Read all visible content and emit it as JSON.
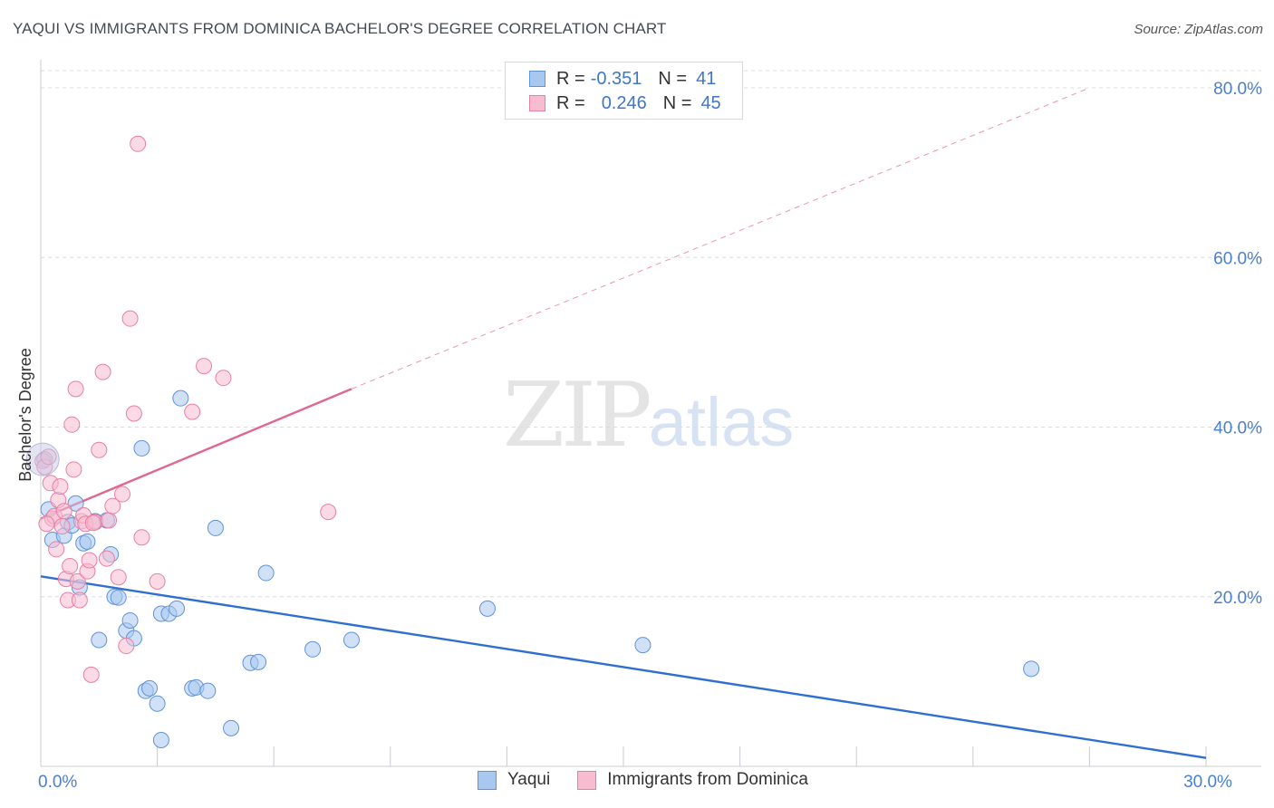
{
  "title": "YAQUI VS IMMIGRANTS FROM DOMINICA BACHELOR'S DEGREE CORRELATION CHART",
  "source": "Source: ZipAtlas.com",
  "watermark": {
    "zip": "ZIP",
    "atlas": "atlas"
  },
  "colors": {
    "yaqui_fill": "#a9c8f0",
    "yaqui_stroke": "#5e93da",
    "yaqui_line": "#2f6fd1",
    "dominica_fill": "#f7bcd0",
    "dominica_stroke": "#e97fa3",
    "dominica_line": "#e06694",
    "grid": "#d8dce2",
    "tick_text": "#4a7fd0"
  },
  "legend": {
    "rows": [
      {
        "r_label": "R =",
        "r_value": "-0.351",
        "n_label": "N =",
        "n_value": "41"
      },
      {
        "r_label": "R =",
        "r_value": "0.246",
        "n_label": "N =",
        "n_value": "45"
      }
    ]
  },
  "bottom_legend": {
    "yaqui": "Yaqui",
    "dominica": "Immigrants from Dominica"
  },
  "chart_data": {
    "type": "scatter",
    "title": "YAQUI VS IMMIGRANTS FROM DOMINICA BACHELOR'S DEGREE CORRELATION CHART",
    "xlabel": "",
    "ylabel": "Bachelor's Degree",
    "xlim": [
      0,
      30
    ],
    "ylim": [
      0,
      85
    ],
    "x_tick_labels": [
      {
        "value": 0,
        "label": "0.0%"
      },
      {
        "value": 30,
        "label": "30.0%"
      }
    ],
    "y_tick_labels": [
      {
        "value": 20,
        "label": "20.0%"
      },
      {
        "value": 40,
        "label": "40.0%"
      },
      {
        "value": 60,
        "label": "60.0%"
      },
      {
        "value": 80,
        "label": "80.0%"
      }
    ],
    "series": [
      {
        "name": "Yaqui",
        "r": -0.351,
        "n": 41,
        "trend": {
          "x": [
            0,
            30
          ],
          "y": [
            22.4,
            1.0
          ],
          "dashed_to": null
        },
        "points": [
          [
            0.1,
            36.2
          ],
          [
            0.2,
            30.3
          ],
          [
            0.3,
            26.7
          ],
          [
            0.6,
            27.2
          ],
          [
            0.7,
            28.8
          ],
          [
            0.8,
            28.4
          ],
          [
            0.9,
            31.0
          ],
          [
            1.0,
            21.1
          ],
          [
            1.1,
            26.3
          ],
          [
            1.2,
            26.5
          ],
          [
            1.4,
            28.9
          ],
          [
            1.5,
            14.9
          ],
          [
            1.7,
            29.0
          ],
          [
            1.8,
            25.0
          ],
          [
            1.9,
            20.0
          ],
          [
            2.0,
            19.9
          ],
          [
            2.2,
            16.0
          ],
          [
            2.3,
            17.2
          ],
          [
            2.4,
            15.1
          ],
          [
            2.6,
            37.5
          ],
          [
            2.7,
            8.9
          ],
          [
            2.8,
            9.2
          ],
          [
            3.0,
            7.4
          ],
          [
            3.1,
            18.0
          ],
          [
            3.1,
            3.1
          ],
          [
            3.3,
            18.0
          ],
          [
            3.5,
            18.6
          ],
          [
            3.6,
            43.4
          ],
          [
            3.9,
            9.2
          ],
          [
            4.0,
            9.3
          ],
          [
            4.3,
            8.9
          ],
          [
            4.5,
            28.1
          ],
          [
            4.9,
            4.5
          ],
          [
            5.4,
            12.2
          ],
          [
            5.6,
            12.3
          ],
          [
            5.8,
            22.8
          ],
          [
            7.0,
            13.8
          ],
          [
            8.0,
            14.9
          ],
          [
            11.5,
            18.6
          ],
          [
            15.5,
            14.3
          ],
          [
            25.5,
            11.5
          ]
        ]
      },
      {
        "name": "Immigrants from Dominica",
        "r": 0.246,
        "n": 45,
        "trend": {
          "x": [
            0,
            8.0
          ],
          "y": [
            29.2,
            44.5
          ],
          "dashed_to": [
            27,
            80
          ]
        },
        "points": [
          [
            0.05,
            36.0
          ],
          [
            0.1,
            35.3
          ],
          [
            0.2,
            36.5
          ],
          [
            0.25,
            33.4
          ],
          [
            0.3,
            29.2
          ],
          [
            0.35,
            29.5
          ],
          [
            0.4,
            25.6
          ],
          [
            0.45,
            31.4
          ],
          [
            0.5,
            33.0
          ],
          [
            0.55,
            28.3
          ],
          [
            0.6,
            30.1
          ],
          [
            0.65,
            22.1
          ],
          [
            0.7,
            19.6
          ],
          [
            0.75,
            23.6
          ],
          [
            0.8,
            40.3
          ],
          [
            0.85,
            35.0
          ],
          [
            0.9,
            44.5
          ],
          [
            0.95,
            21.8
          ],
          [
            1.0,
            19.6
          ],
          [
            1.05,
            28.9
          ],
          [
            1.1,
            29.6
          ],
          [
            1.15,
            28.6
          ],
          [
            1.2,
            23.0
          ],
          [
            1.25,
            24.3
          ],
          [
            1.3,
            10.8
          ],
          [
            1.4,
            28.8
          ],
          [
            1.5,
            37.3
          ],
          [
            1.6,
            46.5
          ],
          [
            1.7,
            24.5
          ],
          [
            1.75,
            29.0
          ],
          [
            1.85,
            30.7
          ],
          [
            2.0,
            22.3
          ],
          [
            2.1,
            32.1
          ],
          [
            2.2,
            14.2
          ],
          [
            2.3,
            52.8
          ],
          [
            2.4,
            41.6
          ],
          [
            2.5,
            73.4
          ],
          [
            2.6,
            27.0
          ],
          [
            3.0,
            21.8
          ],
          [
            3.9,
            41.8
          ],
          [
            4.2,
            47.2
          ],
          [
            4.7,
            45.8
          ],
          [
            7.4,
            30.0
          ],
          [
            0.15,
            28.6
          ],
          [
            1.35,
            28.7
          ]
        ]
      }
    ]
  }
}
